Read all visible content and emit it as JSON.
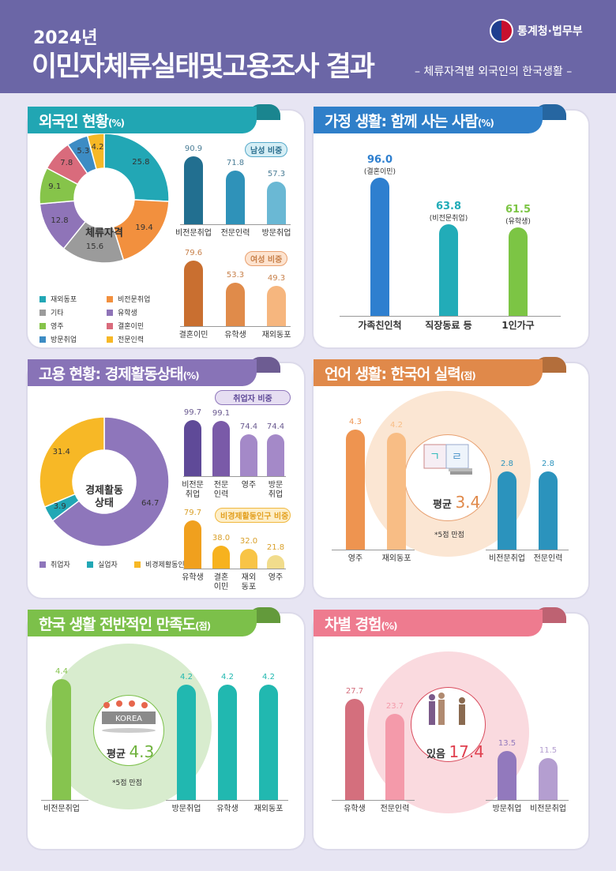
{
  "header": {
    "year": "2024년",
    "title": "이민자체류실태및고용조사 결과",
    "subtitle": "– 체류자격별 외국인의 한국생활 –",
    "agency": "통계청·법무부"
  },
  "panels": [
    {
      "title": "외국인 현황",
      "unit": "(%)",
      "color": "#21a6b3",
      "center_label": "체류자격",
      "badges": [
        "남성 비중",
        "여성 비중"
      ]
    },
    {
      "title": "가정 생활: 함께 사는 사람",
      "unit": "(%)",
      "color": "#2f7fc9"
    },
    {
      "title": "고용 현황: 경제활동상태",
      "unit": "(%)",
      "color": "#8873b7",
      "center_label": "경제활동\n상태",
      "badges": [
        "취업자 비중",
        "비경제활동인구 비중"
      ]
    },
    {
      "title": "언어 생활: 한국어 실력",
      "unit": "(점)",
      "color": "#e0894a",
      "avg_label": "평균",
      "avg_value": "3.4",
      "note": "*5점 만점"
    },
    {
      "title": "한국 생활 전반적인 만족도",
      "unit": "(점)",
      "color": "#7cc04a",
      "avg_label": "평균",
      "avg_value": "4.3",
      "note": "*5점 만점",
      "image_text": "KOREA"
    },
    {
      "title": "차별 경험",
      "unit": "(%)",
      "color": "#ee7b8f",
      "avg_label": "있음",
      "avg_value": "17.4"
    }
  ],
  "chart_data": [
    {
      "type": "pie",
      "categories": [
        "재외동포",
        "비전문취업",
        "기타",
        "유학생",
        "영주",
        "결혼이민",
        "방문취업",
        "전문인력"
      ],
      "values": [
        25.8,
        19.4,
        15.6,
        12.8,
        9.1,
        7.8,
        5.3,
        4.2
      ],
      "colors": [
        "#22a7b5",
        "#f2903e",
        "#9b9b9b",
        "#8f74b8",
        "#86c44a",
        "#d96b7c",
        "#3d8cc4",
        "#f7b826"
      ],
      "legend": "bottom"
    },
    {
      "type": "bar",
      "title": "남성 비중",
      "categories": [
        "비전문취업",
        "전문인력",
        "방문취업"
      ],
      "values": [
        90.9,
        71.8,
        57.3
      ],
      "colors": [
        "#226f90",
        "#2f92b9",
        "#6ab8d4"
      ],
      "value_color": "#4a7d96"
    },
    {
      "type": "bar",
      "title": "여성 비중",
      "categories": [
        "결혼이민",
        "유학생",
        "재외동포"
      ],
      "values": [
        79.6,
        53.3,
        49.3
      ],
      "colors": [
        "#c96f30",
        "#e08b4a",
        "#f6b67e"
      ],
      "value_color": "#c8804a"
    },
    {
      "type": "bar",
      "categories": [
        "가족친인척",
        "직장동료 등",
        "1인가구"
      ],
      "sublabels": [
        "(결혼이민)",
        "(비전문취업)",
        "(유학생)"
      ],
      "values": [
        96.0,
        63.8,
        61.5
      ],
      "colors": [
        "#2e7fcf",
        "#22acb8",
        "#7cc544"
      ]
    },
    {
      "type": "pie",
      "categories": [
        "취업자",
        "실업자",
        "비경제활동인구"
      ],
      "values": [
        64.7,
        3.9,
        31.4
      ],
      "colors": [
        "#8e76bb",
        "#22a7b5",
        "#f7b826"
      ],
      "legend": "bottom"
    },
    {
      "type": "bar",
      "title": "취업자 비중",
      "categories": [
        "비전문\n취업",
        "전문\n인력",
        "영주",
        "방문\n취업"
      ],
      "values": [
        99.7,
        99.1,
        74.4,
        74.4
      ],
      "colors": [
        "#5f4a98",
        "#7a5aa8",
        "#a489c8",
        "#a489c8"
      ],
      "value_color": "#6a5a90"
    },
    {
      "type": "bar",
      "title": "비경제활동인구 비중",
      "categories": [
        "유학생",
        "결혼\n이민",
        "재외\n동포",
        "영주"
      ],
      "values": [
        79.7,
        38.0,
        32.0,
        21.8
      ],
      "colors": [
        "#f0a01e",
        "#f7b21e",
        "#f8c446",
        "#f1dc8c"
      ],
      "value_color": "#d9a02a"
    },
    {
      "type": "bar",
      "categories": [
        "영주",
        "재외동포",
        "비전문취업",
        "전문인력"
      ],
      "values": [
        4.3,
        4.2,
        2.8,
        2.8
      ],
      "colors": [
        "#ee9450",
        "#f8bd85",
        "#2b93bd",
        "#2b93bd"
      ]
    },
    {
      "type": "bar",
      "categories": [
        "비전문취업",
        "방문취업",
        "유학생",
        "재외동포"
      ],
      "values": [
        4.4,
        4.2,
        4.2,
        4.2
      ],
      "colors": [
        "#86c44f",
        "#21b8b0",
        "#21b8b0",
        "#21b8b0"
      ]
    },
    {
      "type": "bar",
      "categories": [
        "유학생",
        "전문인력",
        "방문취업",
        "비전문취업"
      ],
      "values": [
        27.7,
        23.7,
        13.5,
        11.5
      ],
      "colors": [
        "#d46f7d",
        "#f49aaa",
        "#9279bd",
        "#b49ed0"
      ]
    }
  ]
}
